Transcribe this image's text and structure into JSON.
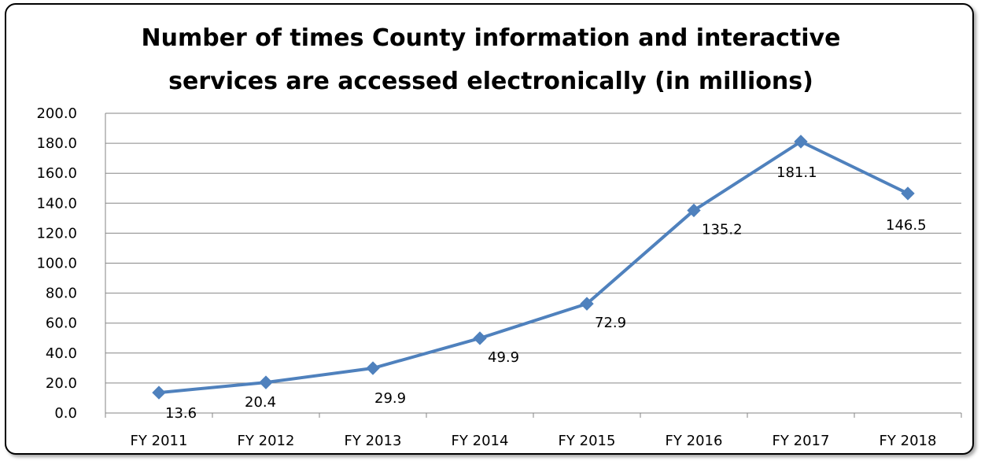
{
  "chart_data": {
    "type": "line",
    "title_lines": [
      "Number of times County information and interactive",
      "services are accessed electronically (in millions)"
    ],
    "categories": [
      "FY 2011",
      "FY 2012",
      "FY 2013",
      "FY 2014",
      "FY 2015",
      "FY 2016",
      "FY 2017",
      "FY 2018"
    ],
    "values": [
      13.6,
      20.4,
      29.9,
      49.9,
      72.9,
      135.2,
      181.1,
      146.5
    ],
    "data_labels": [
      "13.6",
      "20.4",
      "29.9",
      "49.9",
      "72.9",
      "135.2",
      "181.1",
      "146.5"
    ],
    "y_ticks": [
      "0.0",
      "20.0",
      "40.0",
      "60.0",
      "80.0",
      "100.0",
      "120.0",
      "140.0",
      "160.0",
      "180.0",
      "200.0"
    ],
    "ylim": [
      0,
      200
    ],
    "y_step": 20,
    "grid": true,
    "legend": "none",
    "series_color": "#4F81BD"
  }
}
